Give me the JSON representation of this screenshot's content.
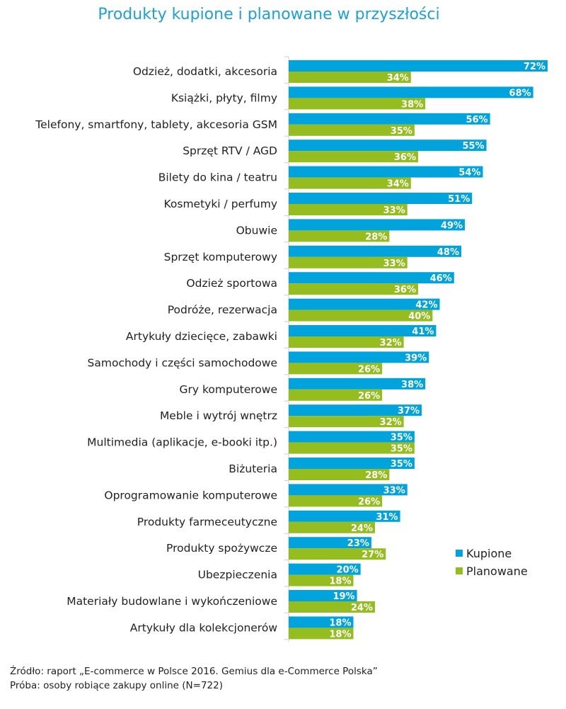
{
  "title": "Produkty kupione i planowane w przyszłości",
  "source": "Źródło: raport „E-commerce w Polsce 2016. Gemius dla e-Commerce Polska”",
  "sample": "Próba: osoby robiące zakupy online (N=722)",
  "chart_data": {
    "type": "bar",
    "orientation": "horizontal",
    "title": "Produkty kupione i planowane w przyszłości",
    "categories": [
      "Odzież, dodatki, akcesoria",
      "Książki, płyty, filmy",
      "Telefony, smartfony, tablety, akcesoria GSM",
      "Sprzęt RTV / AGD",
      "Bilety do kina / teatru",
      "Kosmetyki / perfumy",
      "Obuwie",
      "Sprzęt komputerowy",
      "Odzież sportowa",
      "Podróże, rezerwacja",
      "Artykuły dziecięce, zabawki",
      "Samochody i części samochodowe",
      "Gry komputerowe",
      "Meble i wytrój wnętrz",
      "Multimedia (aplikacje, e-booki itp.)",
      "Biżuteria",
      "Oprogramowanie komputerowe",
      "Produkty farmeceutyczne",
      "Produkty spożywcze",
      "Ubezpieczenia",
      "Materiały budowlane i wykończeniowe",
      "Artykuły dla kolekcjonerów"
    ],
    "series": [
      {
        "name": "Kupione",
        "color": "#00a3dc",
        "values": [
          72,
          68,
          56,
          55,
          54,
          51,
          49,
          48,
          46,
          42,
          41,
          39,
          38,
          37,
          35,
          35,
          33,
          31,
          23,
          20,
          19,
          18
        ]
      },
      {
        "name": "Planowane",
        "color": "#95bd1f",
        "values": [
          34,
          38,
          35,
          36,
          34,
          33,
          28,
          33,
          36,
          40,
          32,
          26,
          26,
          32,
          35,
          28,
          26,
          24,
          27,
          18,
          24,
          18
        ]
      }
    ],
    "value_suffix": "%",
    "xlim": [
      0,
      72
    ],
    "grid": false,
    "legend": "right"
  }
}
